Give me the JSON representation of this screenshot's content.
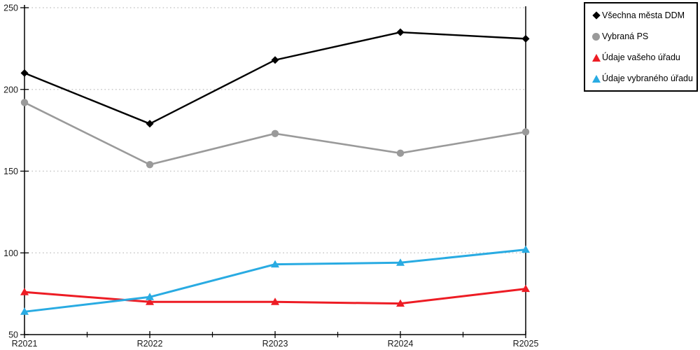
{
  "chart_data": {
    "type": "line",
    "title": "",
    "xlabel": "",
    "ylabel": "",
    "categories": [
      "R2021",
      "R2022",
      "R2023",
      "R2024",
      "R2025"
    ],
    "series": [
      {
        "name": "Všechna města DDM",
        "marker": "diamond",
        "color": "#000000",
        "values": [
          210,
          179,
          218,
          235,
          231
        ]
      },
      {
        "name": "Vybraná PS",
        "marker": "circle",
        "color": "#9a9a9a",
        "values": [
          192,
          154,
          173,
          161,
          174
        ]
      },
      {
        "name": "Údaje vašeho úřadu",
        "marker": "triangle",
        "color": "#ed1c24",
        "values": [
          76,
          70,
          70,
          69,
          78
        ]
      },
      {
        "name": "Údaje vybraného úřadu",
        "marker": "triangle",
        "color": "#29abe2",
        "values": [
          64,
          73,
          93,
          94,
          102
        ]
      }
    ],
    "ylim": [
      50,
      250
    ],
    "yticks": [
      50,
      100,
      150,
      200,
      250
    ],
    "grid": "horizontal-dotted",
    "legend_position": "top-right"
  },
  "colors": {
    "axis": "#000000",
    "grid": "#c8c8c8",
    "background": "#ffffff",
    "text": "#1a1a1a"
  }
}
